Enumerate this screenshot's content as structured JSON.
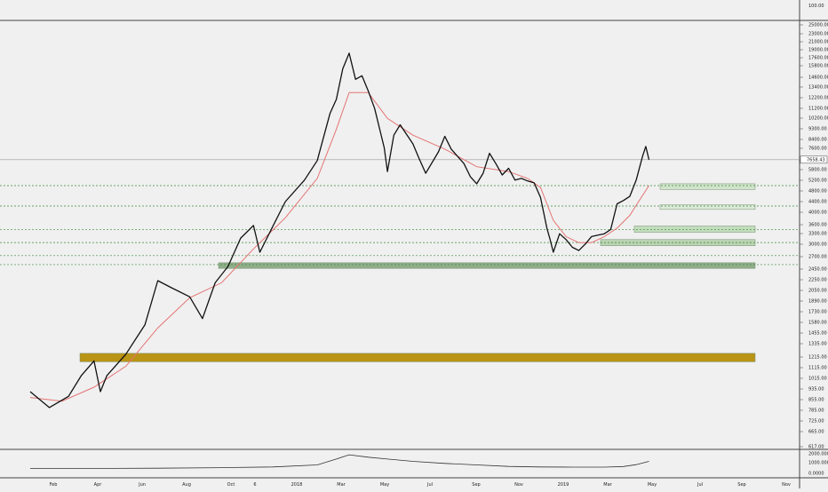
{
  "chart_data": {
    "type": "line",
    "scale": "log",
    "grid": false,
    "price_axis": {
      "ticks": [
        "25000.00",
        "23000.00",
        "21000.00",
        "19000.00",
        "17600.00",
        "15800.00",
        "14600.00",
        "13400.00",
        "12200.00",
        "11200.00",
        "10200.00",
        "9300.00",
        "8400.00",
        "7600.00",
        "6400.00",
        "5800.00",
        "5200.00",
        "4800.00",
        "4400.00",
        "4000.00",
        "3600.00",
        "3300.00",
        "3000.00",
        "2700.00",
        "2450.00",
        "2250.00",
        "2050.00",
        "1890.00",
        "1730.00",
        "1580.00",
        "1455.00",
        "1335.00",
        "1215.00",
        "1115.00",
        "1015.00",
        "935.00",
        "855.00",
        "785.00",
        "725.00",
        "665.00",
        "617.00"
      ],
      "top_label": "100.00",
      "current_price_label": "7658.43"
    },
    "volume_axis": {
      "ticks": [
        "2000.0000",
        "1000.0000",
        "0.0000"
      ]
    },
    "time_axis": {
      "ticks": [
        "Feb",
        "Apr",
        "Jun",
        "Aug",
        "Oct",
        "6",
        "2018",
        "Mar",
        "May",
        "Jul",
        "Sep",
        "Nov",
        "2019",
        "Mar",
        "May",
        "Jul",
        "Sep",
        "Nov"
      ]
    },
    "series": [
      {
        "role": "price",
        "color": "#111111",
        "points": [
          [
            0,
            1000
          ],
          [
            0.03,
            870
          ],
          [
            0.06,
            960
          ],
          [
            0.08,
            1150
          ],
          [
            0.1,
            1310
          ],
          [
            0.11,
            1000
          ],
          [
            0.12,
            1150
          ],
          [
            0.15,
            1390
          ],
          [
            0.18,
            1800
          ],
          [
            0.2,
            2650
          ],
          [
            0.22,
            2500
          ],
          [
            0.25,
            2300
          ],
          [
            0.27,
            1900
          ],
          [
            0.29,
            2600
          ],
          [
            0.31,
            3000
          ],
          [
            0.33,
            3850
          ],
          [
            0.35,
            4300
          ],
          [
            0.36,
            3400
          ],
          [
            0.38,
            4250
          ],
          [
            0.4,
            5300
          ],
          [
            0.43,
            6400
          ],
          [
            0.45,
            7600
          ],
          [
            0.47,
            11500
          ],
          [
            0.48,
            13000
          ],
          [
            0.49,
            17000
          ],
          [
            0.5,
            19500
          ],
          [
            0.51,
            15500
          ],
          [
            0.52,
            16000
          ],
          [
            0.53,
            14000
          ],
          [
            0.54,
            12000
          ],
          [
            0.555,
            8500
          ],
          [
            0.56,
            6900
          ],
          [
            0.57,
            9500
          ],
          [
            0.58,
            10400
          ],
          [
            0.6,
            8800
          ],
          [
            0.61,
            7700
          ],
          [
            0.62,
            6800
          ],
          [
            0.64,
            8200
          ],
          [
            0.65,
            9400
          ],
          [
            0.66,
            8400
          ],
          [
            0.68,
            7400
          ],
          [
            0.69,
            6600
          ],
          [
            0.7,
            6200
          ],
          [
            0.71,
            6800
          ],
          [
            0.72,
            8100
          ],
          [
            0.73,
            7400
          ],
          [
            0.74,
            6700
          ],
          [
            0.75,
            7100
          ],
          [
            0.76,
            6400
          ],
          [
            0.77,
            6500
          ],
          [
            0.78,
            6350
          ],
          [
            0.79,
            6250
          ],
          [
            0.8,
            5500
          ],
          [
            0.81,
            4200
          ],
          [
            0.815,
            3800
          ],
          [
            0.82,
            3400
          ],
          [
            0.83,
            4000
          ],
          [
            0.84,
            3800
          ],
          [
            0.85,
            3550
          ],
          [
            0.86,
            3450
          ],
          [
            0.87,
            3650
          ],
          [
            0.88,
            3900
          ],
          [
            0.89,
            3950
          ],
          [
            0.9,
            4000
          ],
          [
            0.91,
            4150
          ],
          [
            0.92,
            5200
          ],
          [
            0.93,
            5350
          ],
          [
            0.94,
            5550
          ],
          [
            0.95,
            6400
          ],
          [
            0.96,
            7900
          ],
          [
            0.965,
            8600
          ],
          [
            0.97,
            7650
          ]
        ]
      },
      {
        "role": "moving-average",
        "color": "#e57373",
        "points": [
          [
            0,
            950
          ],
          [
            0.05,
            920
          ],
          [
            0.1,
            1040
          ],
          [
            0.15,
            1250
          ],
          [
            0.2,
            1750
          ],
          [
            0.25,
            2280
          ],
          [
            0.3,
            2600
          ],
          [
            0.35,
            3500
          ],
          [
            0.4,
            4600
          ],
          [
            0.45,
            6500
          ],
          [
            0.48,
            10000
          ],
          [
            0.5,
            13800
          ],
          [
            0.53,
            13800
          ],
          [
            0.56,
            11000
          ],
          [
            0.6,
            9500
          ],
          [
            0.65,
            8400
          ],
          [
            0.7,
            7200
          ],
          [
            0.75,
            6900
          ],
          [
            0.78,
            6500
          ],
          [
            0.8,
            6000
          ],
          [
            0.82,
            4500
          ],
          [
            0.84,
            3900
          ],
          [
            0.86,
            3700
          ],
          [
            0.88,
            3700
          ],
          [
            0.9,
            3900
          ],
          [
            0.92,
            4200
          ],
          [
            0.94,
            4700
          ],
          [
            0.96,
            5600
          ],
          [
            0.97,
            6100
          ]
        ]
      },
      {
        "role": "volume-oscillator",
        "color": "#333333",
        "points": [
          [
            0,
            230
          ],
          [
            0.1,
            240
          ],
          [
            0.2,
            270
          ],
          [
            0.3,
            320
          ],
          [
            0.38,
            400
          ],
          [
            0.45,
            620
          ],
          [
            0.48,
            1250
          ],
          [
            0.5,
            1700
          ],
          [
            0.53,
            1450
          ],
          [
            0.56,
            1250
          ],
          [
            0.6,
            1000
          ],
          [
            0.65,
            780
          ],
          [
            0.7,
            620
          ],
          [
            0.75,
            460
          ],
          [
            0.8,
            400
          ],
          [
            0.85,
            380
          ],
          [
            0.9,
            380
          ],
          [
            0.93,
            450
          ],
          [
            0.95,
            650
          ],
          [
            0.97,
            1000
          ]
        ]
      }
    ],
    "horizontal_levels": [
      6100,
      5100,
      4150,
      3700,
      3300,
      3050
    ],
    "zones": [
      {
        "low": 1300,
        "high": 1400,
        "color": "#b8900a"
      },
      {
        "low": 2950,
        "high": 3100,
        "color": "#8aaa84"
      },
      {
        "low": 3600,
        "high": 3800,
        "color": "#b8d2b0"
      },
      {
        "low": 4050,
        "high": 4280,
        "color": "#c2dcbc"
      },
      {
        "low": 4950,
        "high": 5150,
        "color": "#dcebd8"
      },
      {
        "low": 5900,
        "high": 6200,
        "color": "#cfe3ca"
      }
    ]
  }
}
